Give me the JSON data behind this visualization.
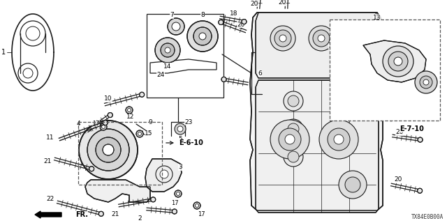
{
  "bg_color": "#ffffff",
  "line_color": "#1a1a1a",
  "text_color": "#000000",
  "diagram_code": "TX84E0B00A",
  "ref_label_1": "E-6-10",
  "ref_label_2": "E-7-10",
  "fr_label": "FR.",
  "figsize": [
    6.4,
    3.2
  ],
  "dpi": 100
}
